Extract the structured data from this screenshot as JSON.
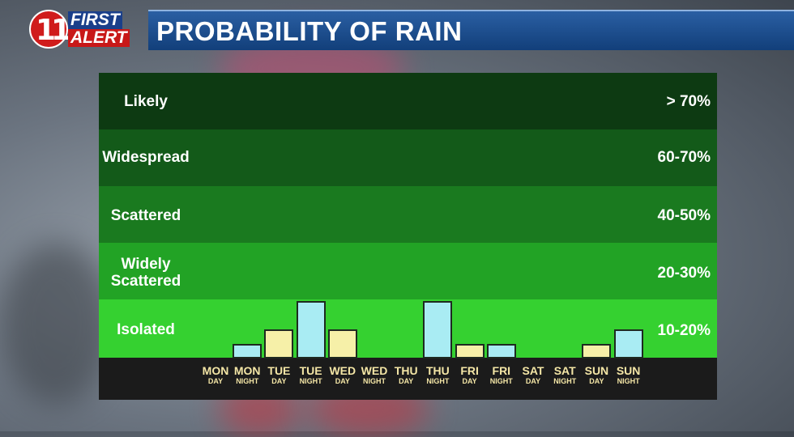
{
  "logo": {
    "number": "11",
    "line1": "FIRST",
    "line2": "ALERT"
  },
  "header": {
    "title": "PROBABILITY OF RAIN"
  },
  "colors": {
    "band_likely": "#0d3a12",
    "band_widespread": "#135a19",
    "band_scattered": "#1a7a1f",
    "band_widely": "#22a325",
    "band_isolated": "#35d130",
    "day_bar": "#f6f0a8",
    "night_bar": "#a9ecf3"
  },
  "chart_data": {
    "type": "bar",
    "title": "PROBABILITY OF RAIN",
    "ylim": [
      0,
      80
    ],
    "bands": [
      {
        "label": "Likely",
        "range": "> 70%",
        "color": "#0d3a12"
      },
      {
        "label": "Widespread",
        "range": "60-70%",
        "color": "#135a19"
      },
      {
        "label": "Scattered",
        "range": "40-50%",
        "color": "#1a7a1f"
      },
      {
        "label": "Widely Scattered",
        "range": "20-30%",
        "color": "#22a325"
      },
      {
        "label": "Isolated",
        "range": "10-20%",
        "color": "#35d130"
      }
    ],
    "categories": [
      {
        "day": "MON",
        "period": "DAY"
      },
      {
        "day": "MON",
        "period": "NIGHT"
      },
      {
        "day": "TUE",
        "period": "DAY"
      },
      {
        "day": "TUE",
        "period": "NIGHT"
      },
      {
        "day": "WED",
        "period": "DAY"
      },
      {
        "day": "WED",
        "period": "NIGHT"
      },
      {
        "day": "THU",
        "period": "DAY"
      },
      {
        "day": "THU",
        "period": "NIGHT"
      },
      {
        "day": "FRI",
        "period": "DAY"
      },
      {
        "day": "FRI",
        "period": "NIGHT"
      },
      {
        "day": "SAT",
        "period": "DAY"
      },
      {
        "day": "SAT",
        "period": "NIGHT"
      },
      {
        "day": "SUN",
        "period": "DAY"
      },
      {
        "day": "SUN",
        "period": "NIGHT"
      }
    ],
    "values": [
      0,
      5,
      10,
      20,
      10,
      0,
      0,
      20,
      5,
      5,
      0,
      0,
      5,
      10
    ]
  }
}
